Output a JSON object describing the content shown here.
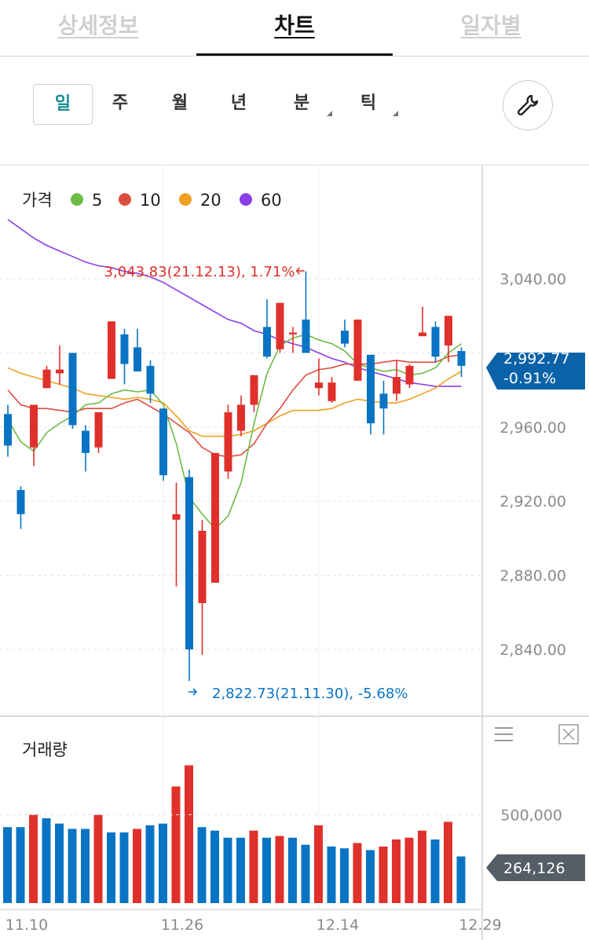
{
  "tabs": [
    {
      "label": "상세정보",
      "active": false
    },
    {
      "label": "차트",
      "active": true
    },
    {
      "label": "일자별",
      "active": false
    }
  ],
  "periods": [
    {
      "label": "일",
      "selected": true,
      "dropdown": false
    },
    {
      "label": "주",
      "selected": false,
      "dropdown": false
    },
    {
      "label": "월",
      "selected": false,
      "dropdown": false
    },
    {
      "label": "년",
      "selected": false,
      "dropdown": false
    },
    {
      "label": "분",
      "selected": false,
      "dropdown": true
    },
    {
      "label": "틱",
      "selected": false,
      "dropdown": true
    }
  ],
  "tool_icon": "wrench-icon",
  "colors": {
    "up": "#e0302b",
    "down": "#0a74c4",
    "ma5": "#6dbb45",
    "ma10": "#de4c3f",
    "ma20": "#f0a020",
    "ma60": "#8a3fe8",
    "badge_blue": "#0a62a8",
    "badge_gray": "#555d66"
  },
  "chart_data": {
    "type": "candlestick",
    "legend": {
      "title": "가격",
      "items": [
        {
          "label": "5",
          "color": "#6dbb45"
        },
        {
          "label": "10",
          "color": "#de4c3f"
        },
        {
          "label": "20",
          "color": "#f0a020"
        },
        {
          "label": "60",
          "color": "#8a3fe8"
        }
      ]
    },
    "y_ticks": [
      3040,
      2960,
      2920,
      2880,
      2840
    ],
    "y_tick_labels": [
      "3,040.00",
      "2,960.00",
      "2,920.00",
      "2,880.00",
      "2,840.00"
    ],
    "ylim": [
      2800,
      3100
    ],
    "x_tick_labels": [
      {
        "label": "11.10",
        "index": 0
      },
      {
        "label": "11.26",
        "index": 12
      },
      {
        "label": "12.14",
        "index": 24
      },
      {
        "label": "12.29",
        "index": 35
      }
    ],
    "candles": [
      {
        "o": 2967,
        "h": 2972,
        "l": 2944,
        "c": 2950
      },
      {
        "o": 2926,
        "h": 2928,
        "l": 2905,
        "c": 2913
      },
      {
        "o": 2949,
        "h": 2972,
        "l": 2939,
        "c": 2972
      },
      {
        "o": 2981,
        "h": 2993,
        "l": 2981,
        "c": 2991
      },
      {
        "o": 2989,
        "h": 3004,
        "l": 2983,
        "c": 2991
      },
      {
        "o": 3000,
        "h": 3000,
        "l": 2959,
        "c": 2961
      },
      {
        "o": 2958,
        "h": 2961,
        "l": 2936,
        "c": 2946
      },
      {
        "o": 2949,
        "h": 2968,
        "l": 2946,
        "c": 2968
      },
      {
        "o": 2986,
        "h": 3014,
        "l": 2986,
        "c": 3017
      },
      {
        "o": 3010,
        "h": 3013,
        "l": 2983,
        "c": 2994
      },
      {
        "o": 3003,
        "h": 3013,
        "l": 2990,
        "c": 2990
      },
      {
        "o": 2993,
        "h": 2996,
        "l": 2973,
        "c": 2978
      },
      {
        "o": 2970,
        "h": 2970,
        "l": 2931,
        "c": 2934
      },
      {
        "o": 2910,
        "h": 2930,
        "l": 2874,
        "c": 2913
      },
      {
        "o": 2933,
        "h": 2937,
        "l": 2823,
        "c": 2840
      },
      {
        "o": 2865,
        "h": 2910,
        "l": 2837,
        "c": 2904
      },
      {
        "o": 2876,
        "h": 2946,
        "l": 2876,
        "c": 2946
      },
      {
        "o": 2936,
        "h": 2972,
        "l": 2932,
        "c": 2968
      },
      {
        "o": 2958,
        "h": 2977,
        "l": 2955,
        "c": 2972
      },
      {
        "o": 2972,
        "h": 2988,
        "l": 2968,
        "c": 2988
      },
      {
        "o": 3014,
        "h": 3029,
        "l": 2997,
        "c": 2998
      },
      {
        "o": 3002,
        "h": 3027,
        "l": 3000,
        "c": 3027
      },
      {
        "o": 3010,
        "h": 3014,
        "l": 3000,
        "c": 3011
      },
      {
        "o": 3018,
        "h": 3044,
        "l": 3002,
        "c": 3000
      },
      {
        "o": 2981,
        "h": 2997,
        "l": 2977,
        "c": 2984
      },
      {
        "o": 2974,
        "h": 2987,
        "l": 2973,
        "c": 2984
      },
      {
        "o": 3012,
        "h": 3018,
        "l": 3003,
        "c": 3005
      },
      {
        "o": 2985,
        "h": 3018,
        "l": 2985,
        "c": 3018
      },
      {
        "o": 2999,
        "h": 2999,
        "l": 2956,
        "c": 2962
      },
      {
        "o": 2978,
        "h": 2985,
        "l": 2956,
        "c": 2970
      },
      {
        "o": 2978,
        "h": 2996,
        "l": 2974,
        "c": 2987
      },
      {
        "o": 2983,
        "h": 2994,
        "l": 2981,
        "c": 2993
      },
      {
        "o": 3009,
        "h": 3025,
        "l": 3009,
        "c": 3011
      },
      {
        "o": 3014,
        "h": 3017,
        "l": 2995,
        "c": 2998
      },
      {
        "o": 3004,
        "h": 3020,
        "l": 2995,
        "c": 3020
      },
      {
        "o": 3001,
        "h": 3003,
        "l": 2987,
        "c": 2993
      }
    ],
    "ma5": [
      2964,
      2952,
      2947,
      2957,
      2962,
      2966,
      2972,
      2973,
      2978,
      2980,
      2979,
      2980,
      2972,
      2951,
      2922,
      2913,
      2905,
      2912,
      2930,
      2962,
      2989,
      3004,
      3008,
      3010,
      3007,
      3005,
      3001,
      2994,
      2992,
      2990,
      2991,
      2988,
      2989,
      2992,
      3000,
      3005
    ],
    "ma10": [
      2980,
      2972,
      2970,
      2970,
      2969,
      2968,
      2970,
      2970,
      2970,
      2973,
      2975,
      2971,
      2967,
      2962,
      2957,
      2949,
      2945,
      2944,
      2945,
      2951,
      2962,
      2970,
      2980,
      2988,
      2991,
      2992,
      2994,
      2994,
      2994,
      2995,
      2996,
      2995,
      2995,
      2995,
      2998,
      2999
    ],
    "ma20": [
      2992,
      2989,
      2987,
      2985,
      2983,
      2981,
      2978,
      2977,
      2976,
      2975,
      2976,
      2975,
      2973,
      2966,
      2958,
      2955,
      2955,
      2955,
      2956,
      2958,
      2962,
      2966,
      2969,
      2969,
      2969,
      2970,
      2973,
      2975,
      2974,
      2973,
      2973,
      2975,
      2978,
      2981,
      2986,
      2990
    ],
    "ma60": [
      3072,
      3067,
      3062,
      3058,
      3055,
      3052,
      3049,
      3047,
      3046,
      3044,
      3043,
      3041,
      3038,
      3034,
      3030,
      3026,
      3022,
      3018,
      3016,
      3012,
      3010,
      3007,
      3005,
      3003,
      3000,
      2997,
      2995,
      2992,
      2990,
      2988,
      2986,
      2984,
      2983,
      2982,
      2982,
      2982
    ],
    "max_annotation": {
      "text": "3,043.83(21.12.13), 1.71%",
      "index": 23,
      "value": 3043.83
    },
    "min_annotation": {
      "text": "2,822.73(21.11.30), -5.68%",
      "index": 14,
      "value": 2822.73
    },
    "last_price": {
      "price": "2,992.77",
      "change": "-0.91%",
      "value": 2992.77
    },
    "volume": {
      "title": "거래량",
      "y_tick_label": "500,000",
      "y_tick": 500000,
      "ylim": [
        0,
        800000
      ],
      "last_label": "264,126",
      "last_value": 264126,
      "values": [
        430000,
        430000,
        500000,
        480000,
        450000,
        420000,
        420000,
        500000,
        400000,
        400000,
        420000,
        440000,
        450000,
        660000,
        780000,
        430000,
        410000,
        370000,
        370000,
        410000,
        370000,
        380000,
        370000,
        330000,
        440000,
        320000,
        310000,
        340000,
        300000,
        320000,
        360000,
        370000,
        410000,
        360000,
        460000,
        264126
      ],
      "up": [
        false,
        false,
        true,
        false,
        false,
        false,
        false,
        true,
        false,
        false,
        true,
        false,
        false,
        true,
        true,
        false,
        false,
        false,
        false,
        true,
        false,
        true,
        false,
        false,
        true,
        false,
        false,
        true,
        false,
        true,
        true,
        true,
        true,
        false,
        true,
        false
      ]
    }
  }
}
